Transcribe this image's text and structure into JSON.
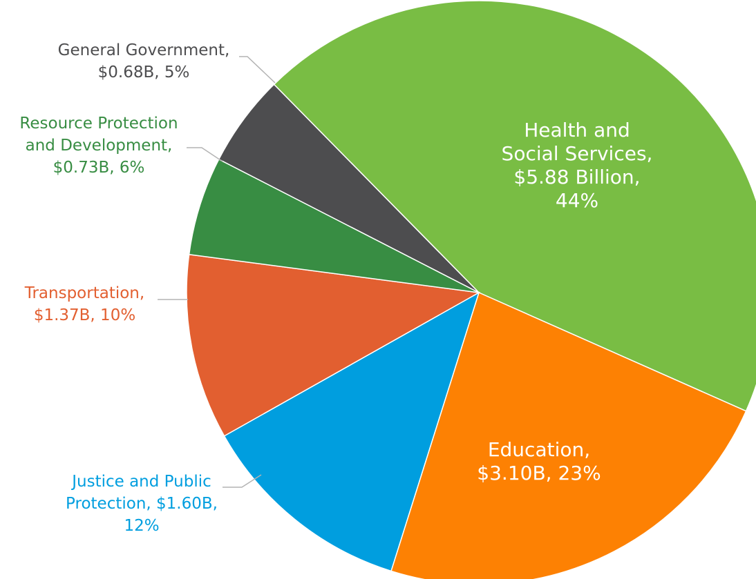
{
  "chart_data": {
    "type": "pie",
    "slices": [
      {
        "name": "Health and Social Services",
        "value_billion": 5.88,
        "percent": 44,
        "color": "#79bd44",
        "label_lines": [
          "Health and",
          "Social Services,",
          "$5.88 Billion,",
          "44%"
        ]
      },
      {
        "name": "Education",
        "value_billion": 3.1,
        "percent": 23,
        "color": "#fd8103",
        "label_lines": [
          "Education,",
          "$3.10B, 23%"
        ]
      },
      {
        "name": "Justice and Public Protection",
        "value_billion": 1.6,
        "percent": 12,
        "color": "#009edf",
        "label_lines": [
          "Justice and Public",
          "Protection, $1.60B,",
          "12%"
        ]
      },
      {
        "name": "Transportation",
        "value_billion": 1.37,
        "percent": 10,
        "color": "#e25f30",
        "label_lines": [
          "Transportation,",
          "$1.37B, 10%"
        ]
      },
      {
        "name": "Resource Protection and Development",
        "value_billion": 0.73,
        "percent": 6,
        "color": "#388d43",
        "label_lines": [
          "Resource Protection",
          "and Development,",
          "$0.73B, 6%"
        ]
      },
      {
        "name": "General Government",
        "value_billion": 0.68,
        "percent": 5,
        "color": "#4d4d4f",
        "label_lines": [
          "General Government,",
          "$0.68B, 5%"
        ]
      }
    ],
    "leader_line_color": "#b3b3b3"
  }
}
